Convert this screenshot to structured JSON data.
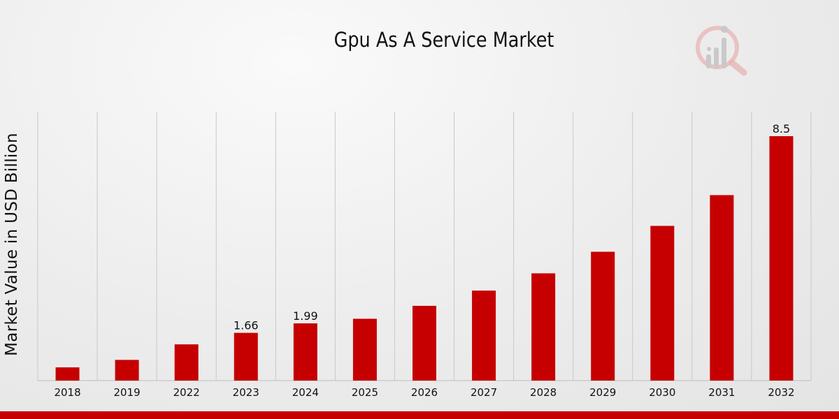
{
  "chart_data": {
    "type": "bar",
    "title": "Gpu As A Service Market",
    "xlabel": "",
    "ylabel": "Market Value in USD Billion",
    "categories": [
      "2018",
      "2019",
      "2022",
      "2023",
      "2024",
      "2025",
      "2026",
      "2027",
      "2028",
      "2029",
      "2030",
      "2031",
      "2032"
    ],
    "values": [
      0.46,
      0.72,
      1.26,
      1.66,
      1.99,
      2.15,
      2.6,
      3.13,
      3.73,
      4.48,
      5.38,
      6.45,
      8.5
    ],
    "data_labels": {
      "3": "1.66",
      "4": "1.99",
      "12": "8.5"
    },
    "ylim": [
      0,
      9.0
    ],
    "grid": "vertical",
    "bar_color": "#c60000"
  },
  "colors": {
    "accent": "#c60000",
    "grid": "#c8c8c8",
    "text": "#111111"
  },
  "logo_icon": "magnifier-bar-chart-icon"
}
